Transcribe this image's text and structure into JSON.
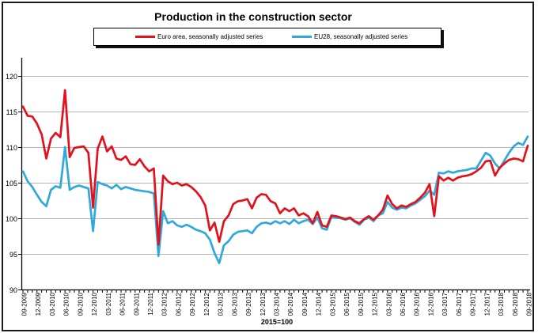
{
  "title": "Production in the construction sector",
  "footnote": "2015=100",
  "chart_data": {
    "type": "line",
    "x_start": "09-2009",
    "x_end": "09-2018",
    "x_frequency": "monthly",
    "x_tick_labels": [
      "09-2009",
      "12-2009",
      "03-2010",
      "06-2010",
      "09-2010",
      "12-2010",
      "03-2011",
      "06-2011",
      "09-2011",
      "12-2011",
      "03-2012",
      "06-2012",
      "09-2012",
      "12-2012",
      "03-2013",
      "06-2013",
      "09-2013",
      "12-2013",
      "03-2014",
      "06-2014",
      "09-2014",
      "12-2014",
      "03-2015",
      "06-2015",
      "09-2015",
      "12-2015",
      "03-2016",
      "06-2016",
      "09-2016",
      "12-2016",
      "03-2017",
      "06-2017",
      "09-2017",
      "12-2017",
      "03-2018",
      "06-2018",
      "09-2018"
    ],
    "y_tick_labels": [
      90,
      95,
      100,
      105,
      110,
      115,
      120
    ],
    "ylim": [
      90,
      123
    ],
    "grid": "horizontal",
    "legend_position": "top",
    "index_note": "2015=100",
    "series": [
      {
        "name": "Euro area, seasonally adjusted series",
        "color": "#e2111c",
        "values": [
          115.7,
          114.4,
          114.3,
          113.3,
          111.8,
          108.4,
          111.2,
          112.0,
          111.4,
          118.0,
          108.6,
          109.9,
          110.0,
          110.1,
          109.2,
          101.5,
          109.8,
          111.5,
          109.4,
          110.1,
          108.4,
          108.2,
          108.7,
          107.6,
          107.5,
          108.3,
          107.3,
          106.6,
          107.0,
          96.3,
          106.0,
          105.2,
          104.8,
          105.0,
          104.6,
          104.8,
          104.4,
          103.8,
          103.0,
          101.8,
          98.3,
          99.4,
          96.7,
          99.6,
          100.4,
          102.0,
          102.4,
          102.5,
          102.7,
          101.4,
          102.9,
          103.4,
          103.3,
          102.4,
          102.1,
          100.7,
          101.4,
          101.0,
          101.4,
          100.4,
          100.7,
          100.3,
          99.3,
          100.9,
          99.0,
          98.8,
          100.4,
          100.3,
          100.1,
          99.9,
          100.1,
          99.6,
          99.3,
          99.9,
          100.3,
          99.8,
          100.4,
          101.2,
          103.2,
          102.0,
          101.4,
          101.8,
          101.6,
          102.0,
          102.3,
          102.9,
          103.6,
          104.8,
          100.3,
          105.9,
          105.3,
          105.7,
          105.3,
          105.7,
          105.9,
          106.0,
          106.2,
          106.6,
          107.1,
          108.0,
          108.1,
          106.0,
          107.1,
          107.7,
          108.2,
          108.4,
          108.3,
          108.0,
          110.2
        ]
      },
      {
        "name": "EU28, seasonally adjusted series",
        "color": "#2fa8dc",
        "values": [
          106.6,
          105.2,
          104.4,
          103.3,
          102.3,
          101.7,
          104.0,
          104.5,
          104.3,
          110.0,
          104.0,
          104.4,
          104.6,
          104.4,
          104.2,
          98.2,
          105.1,
          104.8,
          104.6,
          104.2,
          104.7,
          104.1,
          104.4,
          104.2,
          104.0,
          103.9,
          103.8,
          103.7,
          103.5,
          94.7,
          101.0,
          99.3,
          99.6,
          99.0,
          98.8,
          99.1,
          98.8,
          98.4,
          98.2,
          97.9,
          97.0,
          95.1,
          93.7,
          96.2,
          96.8,
          97.7,
          98.1,
          98.2,
          98.3,
          97.9,
          98.8,
          99.3,
          99.4,
          99.2,
          99.6,
          99.3,
          99.6,
          99.2,
          99.8,
          99.3,
          99.6,
          99.8,
          99.2,
          100.1,
          98.6,
          98.4,
          100.2,
          100.1,
          100.0,
          99.8,
          100.0,
          99.5,
          99.1,
          99.8,
          100.1,
          99.6,
          100.4,
          100.7,
          102.3,
          101.5,
          101.2,
          101.5,
          101.4,
          101.8,
          102.1,
          102.6,
          103.1,
          103.9,
          103.3,
          106.4,
          106.3,
          106.6,
          106.4,
          106.6,
          106.7,
          106.8,
          107.0,
          107.0,
          108.1,
          109.2,
          108.8,
          107.7,
          107.0,
          108.1,
          109.2,
          110.1,
          110.6,
          110.3,
          111.5
        ]
      }
    ]
  }
}
